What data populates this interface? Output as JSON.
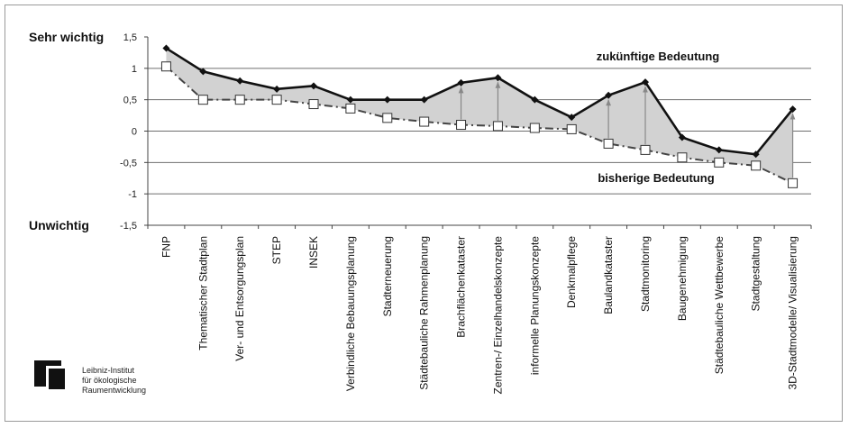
{
  "chart_data": {
    "type": "line",
    "categories": [
      "FNP",
      "Thematischer Stadtplan",
      "Ver- und Entsorgungsplan",
      "STEP",
      "INSEK",
      "Verbindliche Bebauungsplanung",
      "Stadterneuerung",
      "Städtebauliche Rahmenplanung",
      "Brachflächenkataster",
      "Zentren-/ Einzelhandelskonzepte",
      "informelle Planungskonzepte",
      "Denkmalpflege",
      "Baulandkataster",
      "Stadtmonitoring",
      "Baugenehmigung",
      "Städtebauliche Wettbewerbe",
      "Stadtgestaltung",
      "3D-Stadtmodelle/ Visualisierung"
    ],
    "series": [
      {
        "name": "zukünftige Bedeutung",
        "values": [
          1.32,
          0.95,
          0.8,
          0.67,
          0.72,
          0.5,
          0.5,
          0.5,
          0.77,
          0.85,
          0.5,
          0.22,
          0.57,
          0.78,
          -0.1,
          -0.3,
          -0.37,
          0.35
        ],
        "color": "#111111",
        "marker": "diamond"
      },
      {
        "name": "bisherige Bedeutung",
        "values": [
          1.03,
          0.5,
          0.5,
          0.5,
          0.43,
          0.36,
          0.21,
          0.15,
          0.1,
          0.08,
          0.05,
          0.03,
          -0.2,
          -0.3,
          -0.42,
          -0.5,
          -0.55,
          -0.83
        ],
        "color": "#444444",
        "marker": "square"
      }
    ],
    "arrows_at": [
      "Brachflächenkataster",
      "Zentren-/ Einzelhandelskonzepte",
      "Baulandkataster",
      "Stadtmonitoring",
      "3D-Stadtmodelle/ Visualisierung"
    ],
    "ylim": [
      -1.5,
      1.5
    ],
    "yticks": [
      "1,5",
      "1",
      "0,5",
      "0",
      "-0,5",
      "-1",
      "-1,5"
    ],
    "ylabel_top": "Sehr wichtig",
    "ylabel_bottom": "Unwichtig",
    "fill_color": "#d2d2d2",
    "grid": true
  },
  "logo": {
    "line1": "Leibniz-Institut",
    "line2": "für ökologische",
    "line3": "Raumentwicklung"
  }
}
